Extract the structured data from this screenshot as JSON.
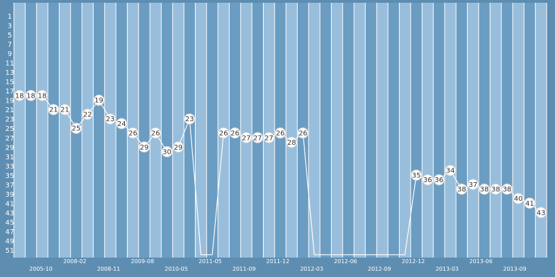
{
  "chart_data": {
    "type": "line",
    "y_axis": {
      "min": 1,
      "max": 51,
      "inverted": true,
      "ticks": [
        1,
        3,
        5,
        7,
        9,
        11,
        13,
        15,
        17,
        19,
        21,
        23,
        25,
        27,
        29,
        31,
        33,
        35,
        37,
        39,
        41,
        43,
        45,
        47,
        49,
        51
      ]
    },
    "x_tick_labels": [
      "2005-10",
      "2008-02",
      "2008-11",
      "2009-08",
      "2010-05",
      "2011-05",
      "2011-09",
      "2011-12",
      "2012-03",
      "2012-06",
      "2012-09",
      "2012-12",
      "2013-03",
      "2013-06",
      "2013-09"
    ],
    "series": [
      {
        "values": [
          18,
          18,
          18,
          21,
          21,
          25,
          22,
          19,
          23,
          24,
          26,
          29,
          26,
          30,
          29,
          23,
          null,
          null,
          26,
          26,
          27,
          27,
          27,
          26,
          28,
          26,
          null,
          null,
          null,
          null,
          null,
          null,
          null,
          null,
          null,
          35,
          36,
          36,
          34,
          38,
          37,
          38,
          38,
          38,
          40,
          41,
          43
        ]
      }
    ],
    "missing_value_drop": 52,
    "grid": true,
    "colors": {
      "background": "#5d8db0",
      "band_light": "#98bedc",
      "band_dark": "#6b9cc2",
      "line": "#ffffff",
      "marker_fill": "#ffffff",
      "marker_text": "#333333"
    }
  }
}
